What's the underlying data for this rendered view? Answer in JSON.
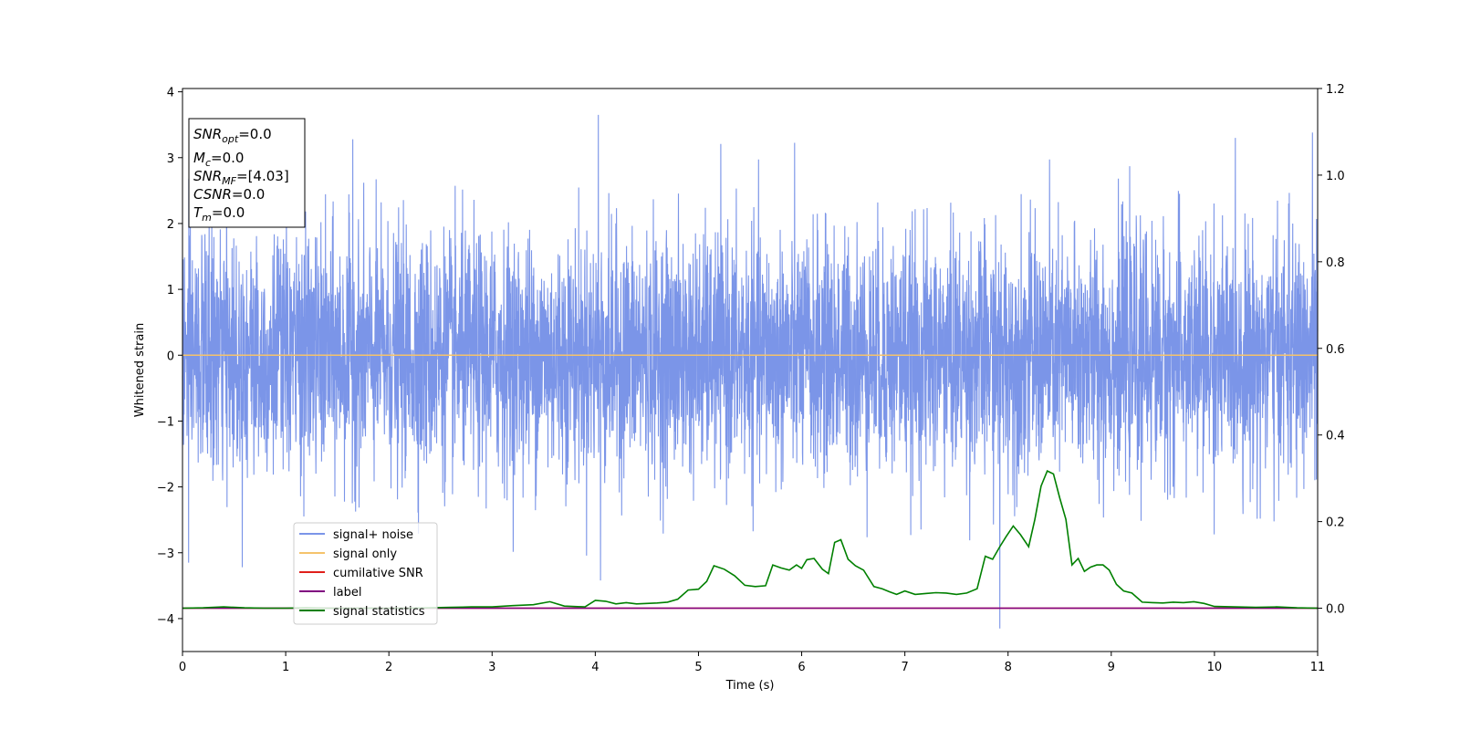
{
  "chart_data": {
    "type": "line",
    "xlabel": "Time (s)",
    "ylabel": "Whitened strain",
    "xlim": [
      0,
      11
    ],
    "ylim": [
      -4.5,
      4.05
    ],
    "y2lim": [
      -0.1,
      1.2
    ],
    "x_ticks": [
      "0",
      "1",
      "2",
      "3",
      "4",
      "5",
      "6",
      "7",
      "8",
      "9",
      "10",
      "11"
    ],
    "y_ticks": [
      "4",
      "3",
      "2",
      "1",
      "0",
      "−1",
      "−2",
      "−3",
      "−4"
    ],
    "y2_ticks": [
      "1.2",
      "1.0",
      "0.8",
      "0.6",
      "0.4",
      "0.2",
      "0.0"
    ],
    "grid": false,
    "legend_position": "lower-left",
    "info_box": {
      "lines": [
        {
          "main": "SNR",
          "sub": "opt",
          "value": "=0.0"
        },
        {
          "main": "M",
          "sub": "c",
          "value": "=0.0"
        },
        {
          "main": "SNR",
          "sub": "MF",
          "value": "=[4.03]"
        },
        {
          "main": "CSNR",
          "sub": "",
          "value": "=0.0"
        },
        {
          "main": "T",
          "sub": "m",
          "value": "=0.0"
        }
      ]
    },
    "series": [
      {
        "name": "signal+ noise",
        "color": "#7b95e8",
        "axis": "left",
        "description_values": {
          "approx_range": [
            -4.15,
            3.65
          ],
          "mean": 0.0
        },
        "notable_peaks": [
          {
            "x": 4.03,
            "y": 3.65
          },
          {
            "x": 10.95,
            "y": 3.38
          },
          {
            "x": 1.65,
            "y": 3.28
          },
          {
            "x": 7.92,
            "y": -4.15
          },
          {
            "x": 4.05,
            "y": -3.42
          },
          {
            "x": 0.06,
            "y": -3.15
          },
          {
            "x": 0.58,
            "y": -3.22
          }
        ]
      },
      {
        "name": "signal only",
        "color": "#f5c36b",
        "axis": "left",
        "x": [
          0,
          11
        ],
        "y": [
          0.0,
          0.0
        ]
      },
      {
        "name": "cumilative SNR",
        "color": "#e0201b",
        "axis": "right",
        "x": [
          0,
          11
        ],
        "y": [
          0.0,
          0.0
        ]
      },
      {
        "name": "label",
        "color": "#800080",
        "axis": "right",
        "x": [
          0,
          11
        ],
        "y": [
          0.0,
          0.0
        ]
      },
      {
        "name": "signal statistics",
        "color": "#008000",
        "axis": "right",
        "x": [
          0,
          0.2,
          0.4,
          0.6,
          0.8,
          1.0,
          1.2,
          1.4,
          1.6,
          1.8,
          2.0,
          2.2,
          2.4,
          2.6,
          2.8,
          3.0,
          3.2,
          3.4,
          3.56,
          3.7,
          3.9,
          4.0,
          4.1,
          4.2,
          4.3,
          4.4,
          4.5,
          4.6,
          4.7,
          4.8,
          4.9,
          5.0,
          5.08,
          5.15,
          5.25,
          5.35,
          5.45,
          5.55,
          5.65,
          5.72,
          5.8,
          5.88,
          5.95,
          6.0,
          6.05,
          6.12,
          6.2,
          6.26,
          6.32,
          6.38,
          6.45,
          6.52,
          6.6,
          6.7,
          6.78,
          6.85,
          6.92,
          7.0,
          7.1,
          7.2,
          7.3,
          7.4,
          7.5,
          7.6,
          7.7,
          7.78,
          7.85,
          7.92,
          7.98,
          8.05,
          8.12,
          8.2,
          8.26,
          8.32,
          8.38,
          8.44,
          8.5,
          8.56,
          8.62,
          8.68,
          8.74,
          8.8,
          8.86,
          8.92,
          8.98,
          9.05,
          9.12,
          9.2,
          9.3,
          9.4,
          9.5,
          9.6,
          9.7,
          9.8,
          9.9,
          10.0,
          10.2,
          10.4,
          10.6,
          10.8,
          11.0
        ],
        "y": [
          0.0,
          0.001,
          0.003,
          0.001,
          0.0,
          0.0,
          0.001,
          0.0,
          0.0,
          0.0,
          0.0,
          0.0,
          0.001,
          0.002,
          0.003,
          0.003,
          0.006,
          0.008,
          0.015,
          0.005,
          0.003,
          0.018,
          0.016,
          0.01,
          0.013,
          0.01,
          0.011,
          0.012,
          0.014,
          0.021,
          0.042,
          0.044,
          0.062,
          0.098,
          0.09,
          0.075,
          0.053,
          0.05,
          0.052,
          0.1,
          0.093,
          0.088,
          0.1,
          0.092,
          0.112,
          0.115,
          0.09,
          0.08,
          0.152,
          0.158,
          0.113,
          0.098,
          0.088,
          0.05,
          0.045,
          0.038,
          0.032,
          0.04,
          0.032,
          0.034,
          0.036,
          0.035,
          0.032,
          0.035,
          0.045,
          0.12,
          0.113,
          0.142,
          0.165,
          0.19,
          0.17,
          0.142,
          0.205,
          0.282,
          0.317,
          0.31,
          0.255,
          0.205,
          0.1,
          0.115,
          0.085,
          0.095,
          0.1,
          0.1,
          0.088,
          0.055,
          0.04,
          0.035,
          0.014,
          0.013,
          0.012,
          0.014,
          0.013,
          0.015,
          0.011,
          0.004,
          0.003,
          0.002,
          0.003,
          0.001,
          0.0
        ]
      }
    ]
  }
}
